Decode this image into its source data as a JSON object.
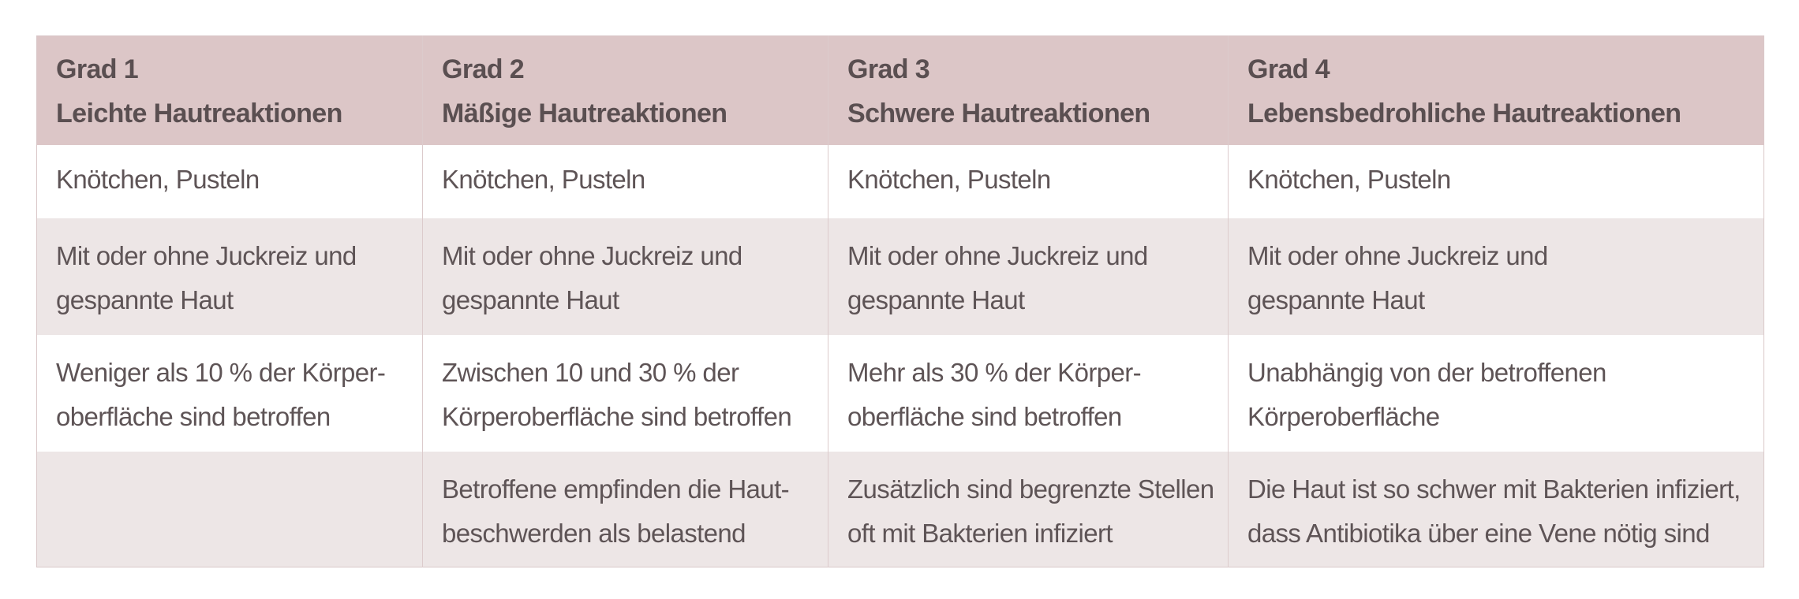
{
  "table": {
    "headers": [
      {
        "grade": "Grad 1",
        "title": "Leichte Hautreaktionen"
      },
      {
        "grade": "Grad 2",
        "title": "Mäßige Hautreaktionen"
      },
      {
        "grade": "Grad 3",
        "title": "Schwere Hautreaktionen"
      },
      {
        "grade": "Grad 4",
        "title": "Lebensbedrohliche Hautreaktionen"
      }
    ],
    "rows": [
      [
        [
          "Knötchen, Pusteln"
        ],
        [
          "Knötchen, Pusteln"
        ],
        [
          "Knötchen, Pusteln"
        ],
        [
          "Knötchen, Pusteln"
        ]
      ],
      [
        [
          "Mit oder ohne Juckreiz und",
          "gespannte Haut"
        ],
        [
          "Mit oder ohne Juckreiz und",
          "gespannte Haut"
        ],
        [
          "Mit oder ohne Juckreiz und",
          "gespannte Haut"
        ],
        [
          "Mit oder ohne Juckreiz und",
          "gespannte Haut"
        ]
      ],
      [
        [
          "Weniger als 10 % der Körper-",
          "oberfläche sind betroffen"
        ],
        [
          "Zwischen 10 und 30 % der",
          "Körperoberfläche sind betroffen"
        ],
        [
          "Mehr als 30 % der Körper-",
          "oberfläche sind betroffen"
        ],
        [
          "Unabhängig von der betroffenen",
          "Körperoberfläche"
        ]
      ],
      [
        [],
        [
          "Betroffene empfinden die Haut-",
          "beschwerden als belastend"
        ],
        [
          "Zusätzlich sind begrenzte Stellen",
          "oft mit Bakterien infiziert"
        ],
        [
          "Die Haut ist so schwer mit Bakterien infiziert,",
          "dass Antibiotika über eine Vene nötig sind"
        ]
      ]
    ]
  },
  "colors": {
    "header_bg": "#dcc6c7",
    "row_alt_bg": "#ede6e6",
    "row_bg": "#ffffff",
    "text": "#5e5456"
  }
}
